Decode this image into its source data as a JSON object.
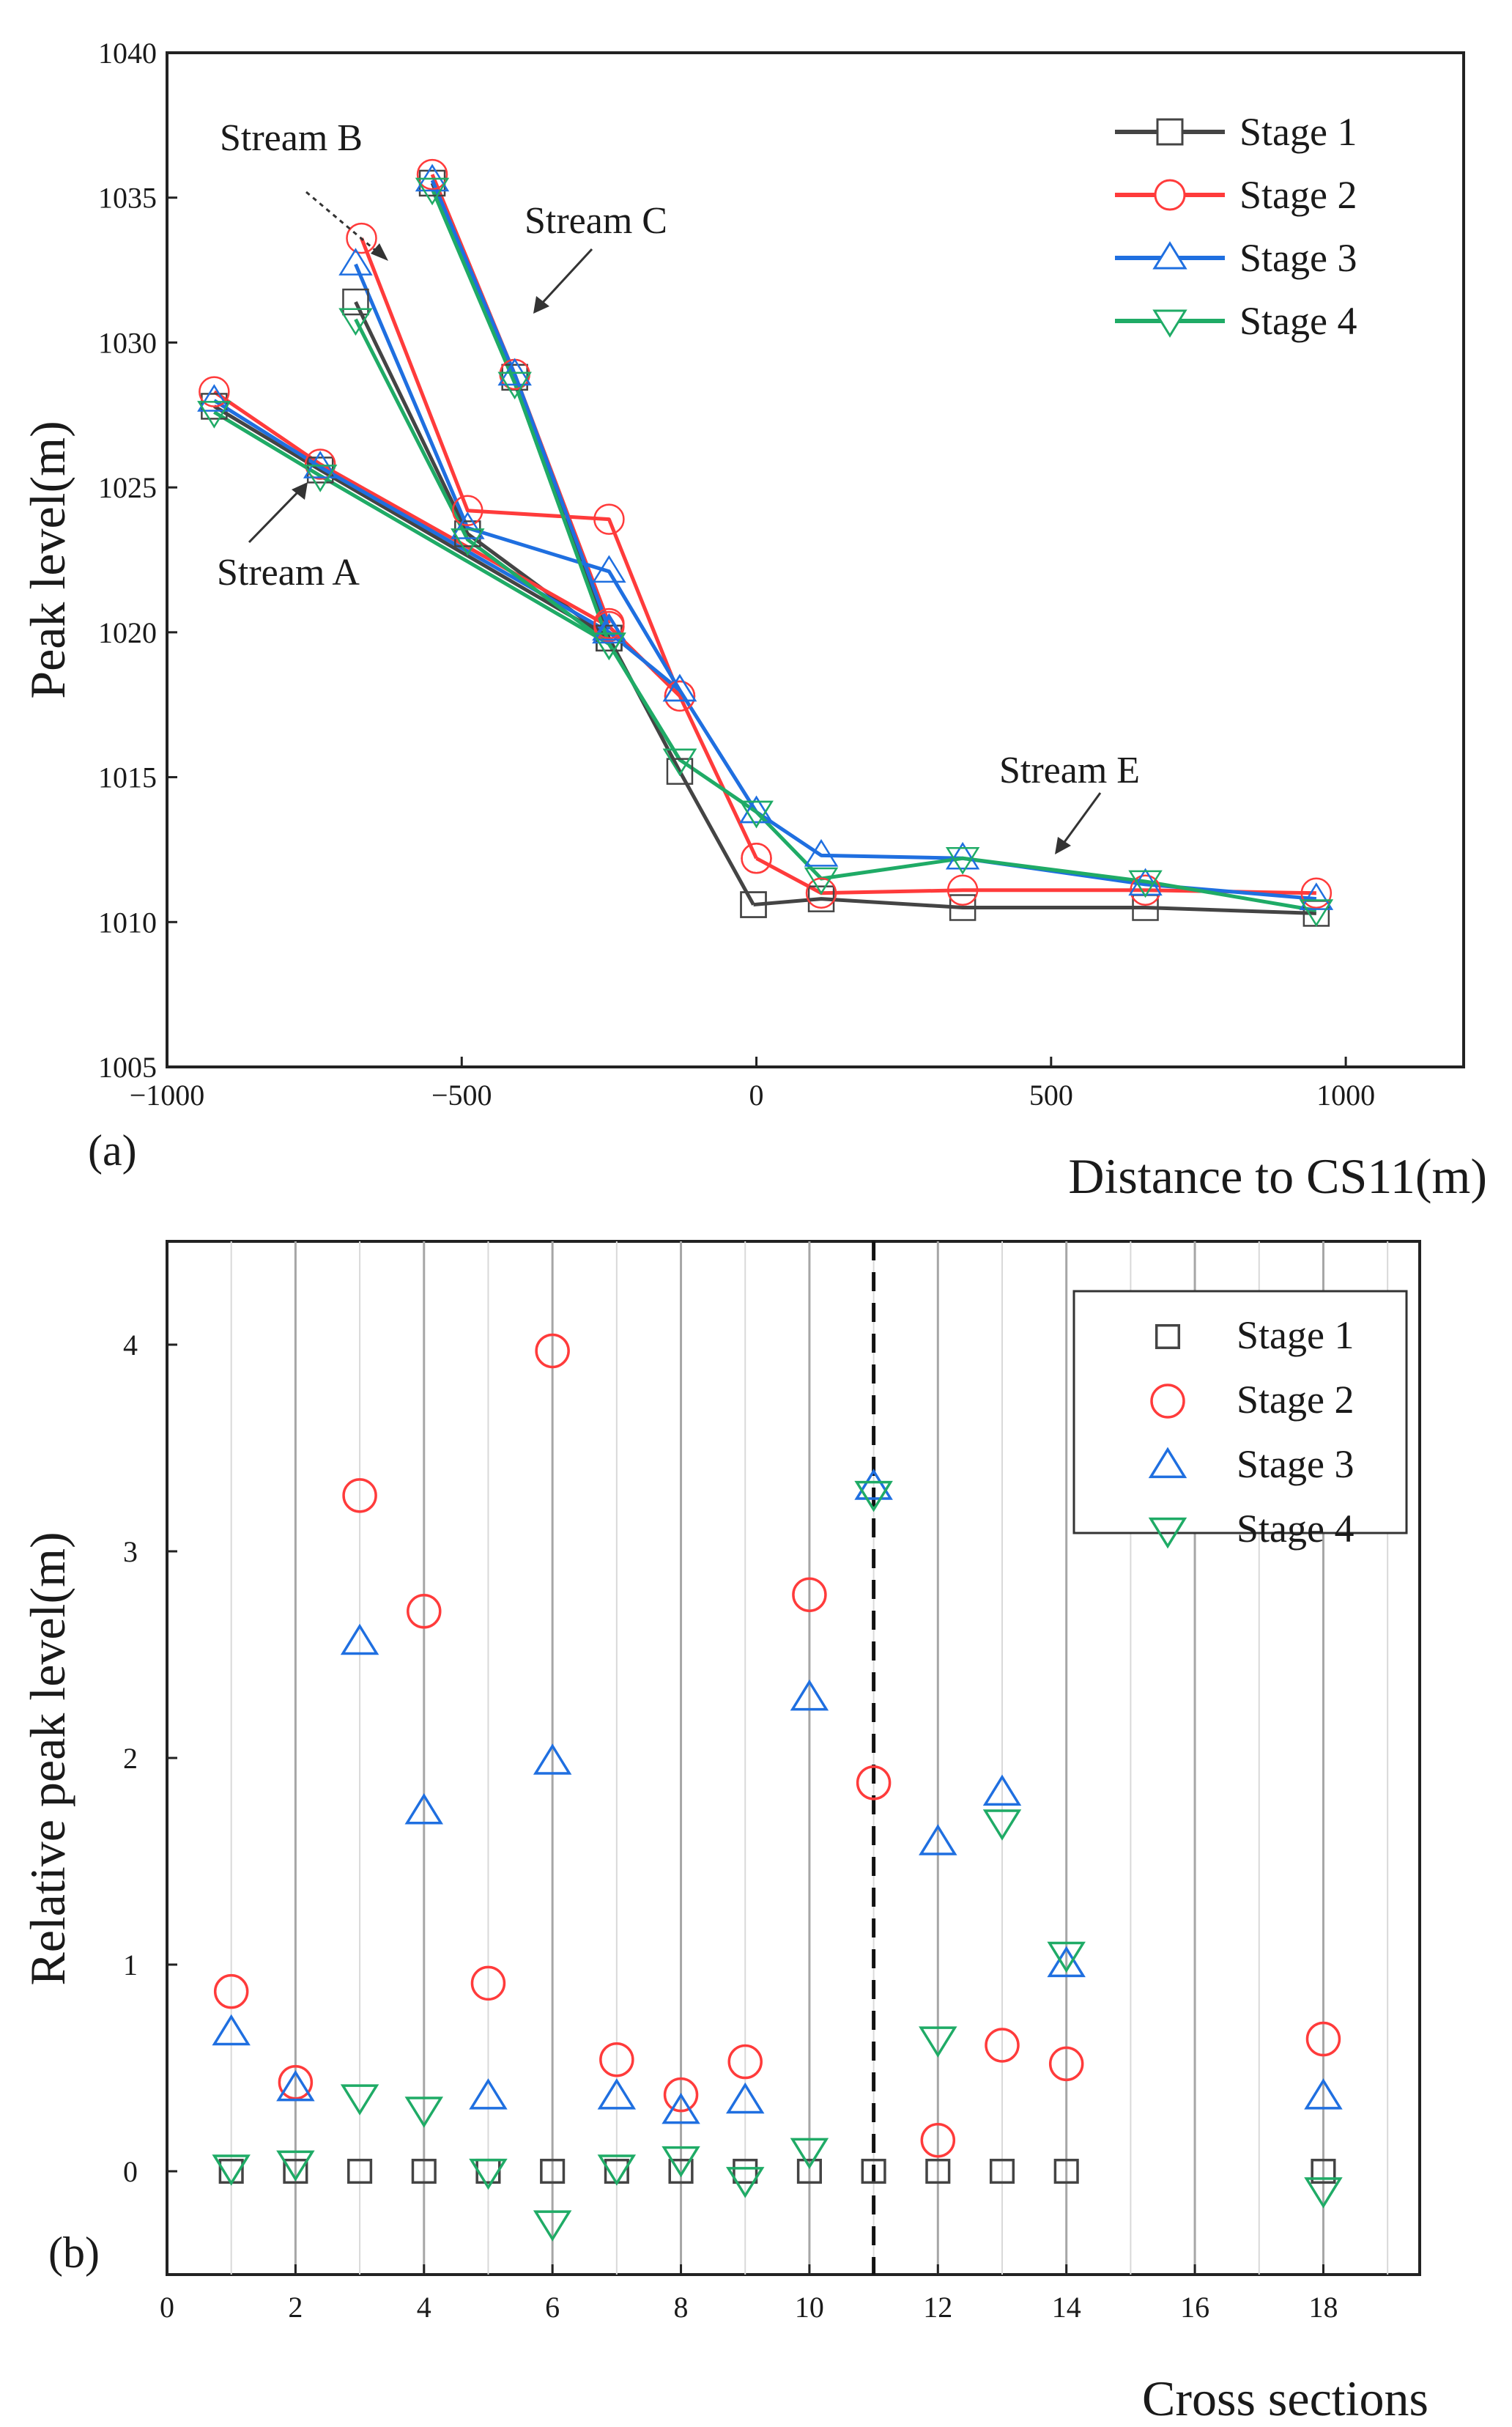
{
  "chart_data": [
    {
      "type": "line",
      "panel_label": "(a)",
      "xlabel": "Distance to CS11(m)",
      "ylabel": "Peak level(m)",
      "xlim": [
        -1000,
        1200
      ],
      "ylim": [
        1005,
        1040
      ],
      "xticks": [
        -1000,
        -500,
        0,
        500,
        1000
      ],
      "yticks": [
        1005,
        1010,
        1015,
        1020,
        1025,
        1030,
        1035,
        1040
      ],
      "xtick_labels": [
        "−1000",
        "−500",
        "0",
        "500",
        "1000"
      ],
      "ytick_labels": [
        "1005",
        "1010",
        "1015",
        "1020",
        "1025",
        "1030",
        "1035",
        "1040"
      ],
      "legend_labels": [
        "Stage 1",
        "Stage 2",
        "Stage 3",
        "Stage 4"
      ],
      "series": [
        {
          "name": "Stage 1",
          "color": "#444444",
          "marker": "square",
          "segments": [
            {
              "stream": "A",
              "x": [
                -920,
                -740,
                -250,
                -130,
                -5
              ],
              "y": [
                1027.8,
                1025.6,
                1019.8,
                1015.2,
                1010.6
              ]
            },
            {
              "stream": "B",
              "x": [
                -680,
                -490,
                -250
              ],
              "y": [
                1031.4,
                1023.4,
                1019.8
              ]
            },
            {
              "stream": "C",
              "x": [
                -550,
                -410,
                -250
              ],
              "y": [
                1035.5,
                1028.8,
                1019.8
              ]
            },
            {
              "stream": "E",
              "x": [
                -5,
                110,
                350,
                660,
                950
              ],
              "y": [
                1010.6,
                1010.8,
                1010.5,
                1010.5,
                1010.3
              ]
            }
          ]
        },
        {
          "name": "Stage 2",
          "color": "#ff3b3b",
          "marker": "circle",
          "segments": [
            {
              "stream": "A",
              "x": [
                -920,
                -740,
                -250,
                -130,
                0
              ],
              "y": [
                1028.3,
                1025.8,
                1020.2,
                1017.8,
                1012.2
              ]
            },
            {
              "stream": "B",
              "x": [
                -670,
                -490,
                -250,
                -130
              ],
              "y": [
                1033.6,
                1024.2,
                1023.9,
                1017.8
              ]
            },
            {
              "stream": "C",
              "x": [
                -550,
                -410,
                -250
              ],
              "y": [
                1035.8,
                1028.9,
                1020.3
              ]
            },
            {
              "stream": "E",
              "x": [
                0,
                110,
                350,
                660,
                950
              ],
              "y": [
                1012.2,
                1011.0,
                1011.1,
                1011.1,
                1011.0
              ]
            }
          ]
        },
        {
          "name": "Stage 3",
          "color": "#1f6fe0",
          "marker": "triangle-up",
          "segments": [
            {
              "stream": "A",
              "x": [
                -920,
                -740,
                -250,
                -130,
                0
              ],
              "y": [
                1028.0,
                1025.7,
                1020.0,
                1018.0,
                1013.8
              ]
            },
            {
              "stream": "B",
              "x": [
                -680,
                -490,
                -250,
                -130
              ],
              "y": [
                1032.7,
                1023.6,
                1022.1,
                1018.0
              ]
            },
            {
              "stream": "C",
              "x": [
                -550,
                -410,
                -250
              ],
              "y": [
                1035.6,
                1028.9,
                1020.1
              ]
            },
            {
              "stream": "E",
              "x": [
                0,
                110,
                350,
                660,
                950
              ],
              "y": [
                1013.8,
                1012.3,
                1012.2,
                1011.3,
                1010.8
              ]
            }
          ]
        },
        {
          "name": "Stage 4",
          "color": "#1fab66",
          "marker": "triangle-down",
          "segments": [
            {
              "stream": "A",
              "x": [
                -920,
                -740,
                -250,
                -130,
                0
              ],
              "y": [
                1027.6,
                1025.4,
                1019.6,
                1015.6,
                1013.8
              ]
            },
            {
              "stream": "B",
              "x": [
                -680,
                -490,
                -250,
                -130
              ],
              "y": [
                1030.8,
                1023.2,
                1019.6,
                1015.6
              ]
            },
            {
              "stream": "C",
              "x": [
                -550,
                -410,
                -250
              ],
              "y": [
                1035.3,
                1028.6,
                1019.6
              ]
            },
            {
              "stream": "E",
              "x": [
                0,
                110,
                350,
                660,
                950
              ],
              "y": [
                1013.8,
                1011.5,
                1012.2,
                1011.4,
                1010.4
              ]
            }
          ]
        }
      ],
      "annotations": [
        {
          "text": "Stream A",
          "target": [
            -740,
            1025.6
          ]
        },
        {
          "text": "Stream B",
          "target": [
            -670,
            1032.4
          ]
        },
        {
          "text": "Stream C",
          "target": [
            -440,
            1030.2
          ]
        },
        {
          "text": "Stream E",
          "target": [
            480,
            1012.2
          ]
        }
      ]
    },
    {
      "type": "scatter",
      "panel_label": "(b)",
      "xlabel": "Cross sections",
      "ylabel": "Relative peak level(m)",
      "xlim": [
        0,
        19.5
      ],
      "ylim": [
        -0.5,
        4.5
      ],
      "xticks": [
        0,
        2,
        4,
        6,
        8,
        10,
        12,
        14,
        16,
        18
      ],
      "yticks": [
        0,
        1,
        2,
        3,
        4
      ],
      "xtick_labels": [
        "0",
        "2",
        "4",
        "6",
        "8",
        "10",
        "12",
        "14",
        "16",
        "18"
      ],
      "ytick_labels": [
        "0",
        "1",
        "2",
        "3",
        "4"
      ],
      "vertical_dashed_line_x": 11,
      "legend_labels": [
        "Stage 1",
        "Stage 2",
        "Stage 3",
        "Stage 4"
      ],
      "series": [
        {
          "name": "Stage 1",
          "color": "#444444",
          "marker": "square",
          "x": [
            1,
            2,
            3,
            4,
            5,
            6,
            7,
            8,
            9,
            10,
            11,
            12,
            13,
            14,
            18
          ],
          "y": [
            0,
            0,
            0,
            0,
            0,
            0,
            0,
            0,
            0,
            0,
            0,
            0,
            0,
            0,
            0
          ]
        },
        {
          "name": "Stage 2",
          "color": "#ff3b3b",
          "marker": "circle",
          "x": [
            1,
            2,
            3,
            4,
            5,
            6,
            7,
            8,
            9,
            10,
            11,
            12,
            13,
            14,
            18
          ],
          "y": [
            0.87,
            0.43,
            3.27,
            2.71,
            0.91,
            3.97,
            0.54,
            0.37,
            0.53,
            2.79,
            1.88,
            0.15,
            0.61,
            0.52,
            0.64
          ]
        },
        {
          "name": "Stage 3",
          "color": "#1f6fe0",
          "marker": "triangle-up",
          "x": [
            1,
            2,
            3,
            4,
            5,
            6,
            7,
            8,
            9,
            10,
            11,
            12,
            13,
            14,
            18
          ],
          "y": [
            0.67,
            0.4,
            2.56,
            1.74,
            0.36,
            1.98,
            0.36,
            0.29,
            0.34,
            2.29,
            3.31,
            1.59,
            1.83,
            1.0,
            0.36
          ]
        },
        {
          "name": "Stage 4",
          "color": "#1fab66",
          "marker": "triangle-down",
          "x": [
            1,
            2,
            3,
            4,
            5,
            6,
            7,
            8,
            9,
            10,
            11,
            12,
            13,
            14,
            18
          ],
          "y": [
            0.02,
            0.04,
            0.36,
            0.3,
            0.0,
            -0.25,
            0.02,
            0.06,
            -0.04,
            0.1,
            3.28,
            0.64,
            1.69,
            1.05,
            -0.09
          ]
        }
      ]
    }
  ]
}
